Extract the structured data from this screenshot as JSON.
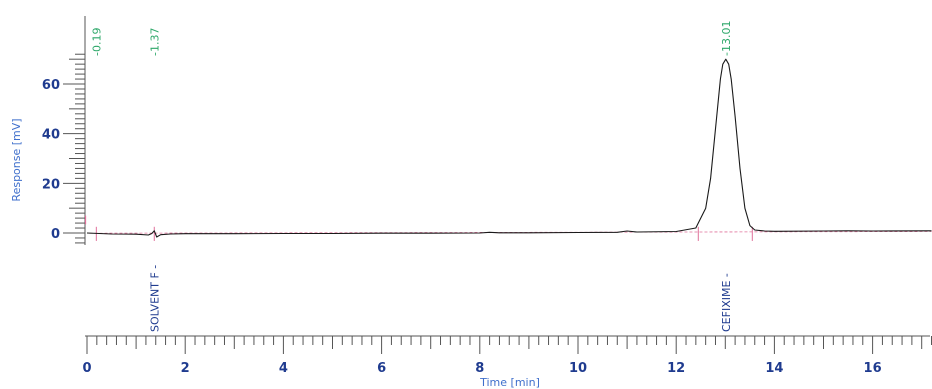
{
  "chart_data": {
    "type": "line",
    "xlabel": "Time [min]",
    "ylabel": "Response [mV]",
    "xlim": [
      0,
      17.2
    ],
    "ylim": [
      -5,
      72
    ],
    "x_ticks": [
      0,
      2,
      4,
      6,
      8,
      10,
      12,
      14,
      16
    ],
    "x_tick_labels": [
      "0",
      "2",
      "4",
      "6",
      "8",
      "10",
      "12",
      "14",
      "16"
    ],
    "y_ticks": [
      0,
      20,
      40,
      60
    ],
    "y_tick_labels": [
      "0",
      "20",
      "40",
      "60"
    ],
    "grid": false,
    "retention_times": [
      {
        "x": 0.19,
        "label": "-0.19"
      },
      {
        "x": 1.37,
        "label": "-1.37"
      },
      {
        "x": 13.01,
        "label": "-13.01"
      }
    ],
    "peak_names": [
      {
        "x": 1.37,
        "label": "SOLVENT F -"
      },
      {
        "x": 13.01,
        "label": "CEFIXIME -"
      }
    ],
    "series": [
      {
        "line_color": "#1a1a1a",
        "x": [
          0.0,
          0.5,
          1.0,
          1.25,
          1.32,
          1.37,
          1.42,
          1.5,
          1.7,
          2.0,
          3.0,
          4.0,
          5.0,
          6.0,
          7.0,
          8.0,
          8.2,
          8.4,
          9.0,
          10.0,
          10.8,
          11.0,
          11.2,
          12.0,
          12.4,
          12.6,
          12.7,
          12.8,
          12.9,
          12.95,
          13.01,
          13.07,
          13.12,
          13.2,
          13.3,
          13.4,
          13.5,
          13.6,
          13.8,
          14.0,
          15.0,
          15.5,
          16.0,
          17.2
        ],
        "y": [
          0.0,
          -0.4,
          -0.5,
          -0.8,
          -0.2,
          0.9,
          -1.6,
          -0.7,
          -0.4,
          -0.3,
          -0.3,
          -0.2,
          -0.2,
          -0.1,
          -0.1,
          0.0,
          0.3,
          0.1,
          0.1,
          0.2,
          0.3,
          0.8,
          0.4,
          0.6,
          2.0,
          10.0,
          22.0,
          42.0,
          62.0,
          68.0,
          70.0,
          68.0,
          62.0,
          47.0,
          26.0,
          10.0,
          3.0,
          1.2,
          0.8,
          0.7,
          0.8,
          0.9,
          0.8,
          0.9
        ]
      }
    ]
  }
}
